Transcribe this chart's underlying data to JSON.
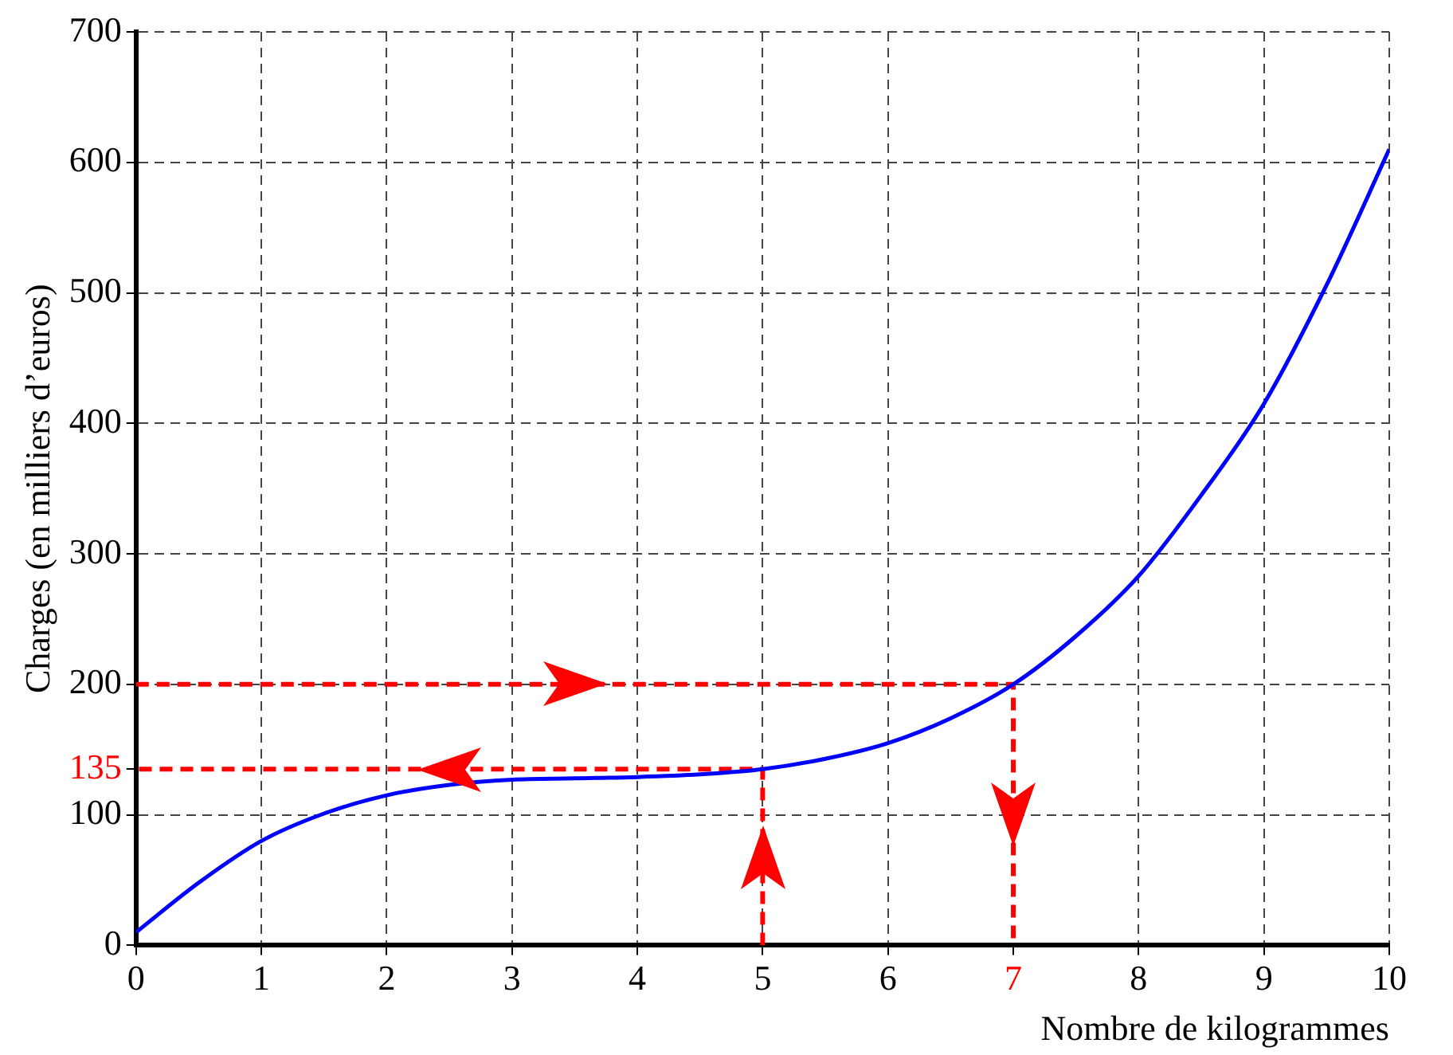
{
  "chart_data": {
    "type": "line",
    "xlabel": "Nombre de kilogrammes",
    "ylabel": "Charges (en milliers d’euros)",
    "xlim": [
      0,
      10
    ],
    "ylim": [
      0,
      700
    ],
    "xticks": [
      0,
      1,
      2,
      3,
      4,
      5,
      6,
      {
        "value": 7,
        "label": "7"
      },
      8,
      9,
      10
    ],
    "yticks": [
      0,
      100,
      {
        "value": 135,
        "label": "135"
      },
      200,
      300,
      400,
      500,
      600,
      700
    ],
    "grid": true,
    "legend": false,
    "marker": "none",
    "series": [
      {
        "color": "#0000ff",
        "line_style": "solid",
        "x": [
          0,
          0.5,
          1,
          1.5,
          2,
          2.5,
          3,
          3.5,
          4,
          4.5,
          5,
          5.5,
          6,
          6.5,
          7,
          7.5,
          8,
          8.5,
          9,
          9.5,
          10
        ],
        "values": [
          10,
          48,
          80,
          101,
          115,
          123,
          127,
          128,
          129,
          131,
          135,
          143,
          155,
          174,
          200,
          237,
          283,
          345,
          415,
          506,
          610
        ]
      },
      {
        "color": "#ff0000",
        "line_style": "dashed",
        "x": [
          5,
          5,
          0
        ],
        "values": [
          0,
          135,
          135
        ]
      },
      {
        "color": "#ff0000",
        "line_style": "dashed",
        "x": [
          0,
          7,
          7
        ],
        "values": [
          200,
          200,
          0
        ]
      }
    ]
  }
}
